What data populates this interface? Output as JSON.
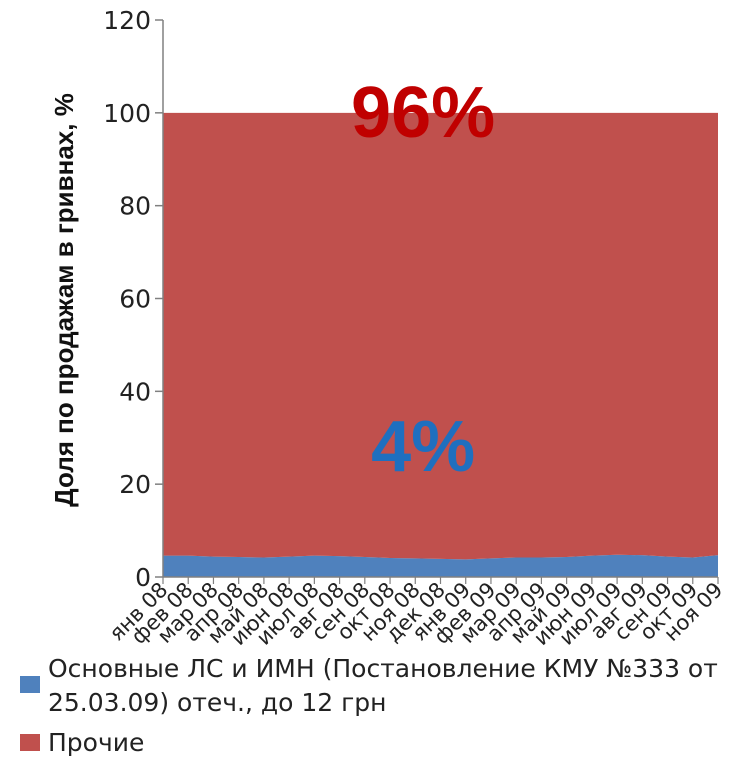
{
  "chart_data": {
    "type": "area",
    "stacked": true,
    "ylabel": "Доля по продажам в гривнах, %",
    "ylim": [
      0,
      120
    ],
    "yticks": [
      0,
      20,
      40,
      60,
      80,
      100,
      120
    ],
    "categories": [
      "янв 08",
      "фев 08",
      "мар 08",
      "апр 08",
      "май 08",
      "июн 08",
      "июл 08",
      "авг 08",
      "сен 08",
      "окт 08",
      "ноя 08",
      "дек 08",
      "янв 09",
      "фев 09",
      "мар 09",
      "апр 09",
      "май 09",
      "июн 09",
      "июл 09",
      "авг 09",
      "сен 09",
      "окт 09",
      "ноя 09"
    ],
    "series": [
      {
        "name": "Основные ЛС и ИМН (Постановление КМУ №333 от 25.03.09) отеч., до 12 грн",
        "color": "#4f81bd",
        "values": [
          4.6,
          4.6,
          4.4,
          4.3,
          4.2,
          4.4,
          4.6,
          4.5,
          4.3,
          4.1,
          4.0,
          3.9,
          3.8,
          4.0,
          4.2,
          4.2,
          4.3,
          4.6,
          4.8,
          4.7,
          4.4,
          4.2,
          4.7
        ]
      },
      {
        "name": "Прочие",
        "color": "#c0504d",
        "values": [
          95.4,
          95.4,
          95.6,
          95.7,
          95.8,
          95.6,
          95.4,
          95.5,
          95.7,
          95.9,
          96.0,
          96.1,
          96.2,
          96.0,
          95.8,
          95.8,
          95.7,
          95.4,
          95.2,
          95.3,
          95.6,
          95.8,
          95.3
        ]
      }
    ],
    "annotations": [
      {
        "text": "96%",
        "color": "#c00000",
        "x_index": 11.5,
        "y": 100
      },
      {
        "text": "4%",
        "color": "#1f6fbf",
        "x_index": 11.5,
        "y": 28
      }
    ]
  }
}
